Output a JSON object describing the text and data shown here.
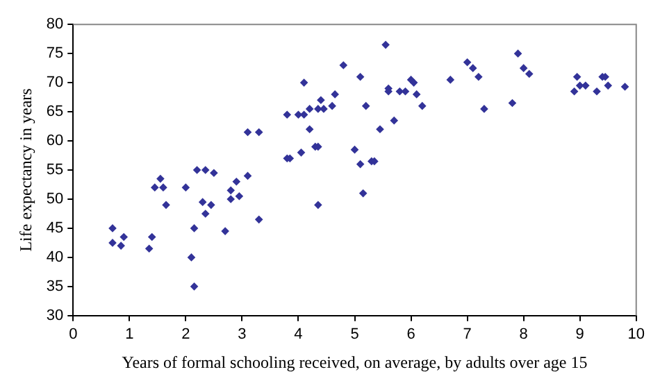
{
  "chart_data": {
    "type": "scatter",
    "xlabel": "Years of formal schooling received, on average, by adults over age 15",
    "ylabel": "Life expectancy in years",
    "xlim": [
      0,
      10
    ],
    "xticks": [
      0,
      1,
      2,
      3,
      4,
      5,
      6,
      7,
      8,
      9,
      10
    ],
    "ylim": [
      30,
      80
    ],
    "yticks": [
      30,
      35,
      40,
      45,
      50,
      55,
      60,
      65,
      70,
      75,
      80
    ],
    "grid": false,
    "legend": false,
    "marker": "diamond",
    "series": [
      {
        "color": "#333399",
        "x": [
          0.7,
          0.7,
          0.85,
          0.9,
          1.35,
          1.4,
          1.45,
          1.55,
          1.6,
          1.65,
          2.0,
          2.1,
          2.15,
          2.15,
          2.2,
          2.3,
          2.35,
          2.35,
          2.45,
          2.5,
          2.7,
          2.8,
          2.8,
          2.9,
          2.95,
          3.1,
          3.1,
          3.3,
          3.3,
          3.8,
          3.85,
          3.8,
          4.0,
          4.05,
          4.1,
          4.1,
          4.2,
          4.2,
          4.3,
          4.35,
          4.35,
          4.35,
          4.4,
          4.45,
          4.6,
          4.65,
          4.8,
          5.0,
          5.1,
          5.1,
          5.15,
          5.2,
          5.3,
          5.35,
          5.45,
          5.55,
          5.6,
          5.6,
          5.7,
          5.8,
          5.9,
          6.0,
          6.05,
          6.1,
          6.2,
          6.7,
          7.0,
          7.1,
          7.2,
          7.3,
          7.8,
          7.9,
          8.0,
          8.1,
          8.9,
          8.95,
          9.0,
          9.1,
          9.3,
          9.4,
          9.45,
          9.5,
          9.8
        ],
        "values": [
          45,
          42.5,
          42,
          43.5,
          41.5,
          43.5,
          52,
          53.5,
          52,
          49,
          52,
          40,
          45,
          35,
          55,
          49.5,
          55,
          47.5,
          49,
          54.5,
          44.5,
          50,
          51.5,
          53,
          50.5,
          54,
          61.5,
          46.5,
          61.5,
          57,
          57,
          64.5,
          64.5,
          58,
          64.5,
          70,
          65.5,
          62,
          59,
          59,
          65.5,
          49,
          67,
          65.5,
          66,
          68,
          73,
          58.5,
          56,
          71,
          51,
          66,
          56.5,
          56.5,
          62,
          76.5,
          69,
          68.5,
          63.5,
          68.5,
          68.5,
          70.5,
          70,
          68,
          66,
          70.5,
          73.5,
          72.5,
          71,
          65.5,
          66.5,
          75,
          72.5,
          71.5,
          68.5,
          71,
          69.5,
          69.5,
          68.5,
          71,
          71,
          69.5,
          69.3
        ]
      }
    ]
  }
}
